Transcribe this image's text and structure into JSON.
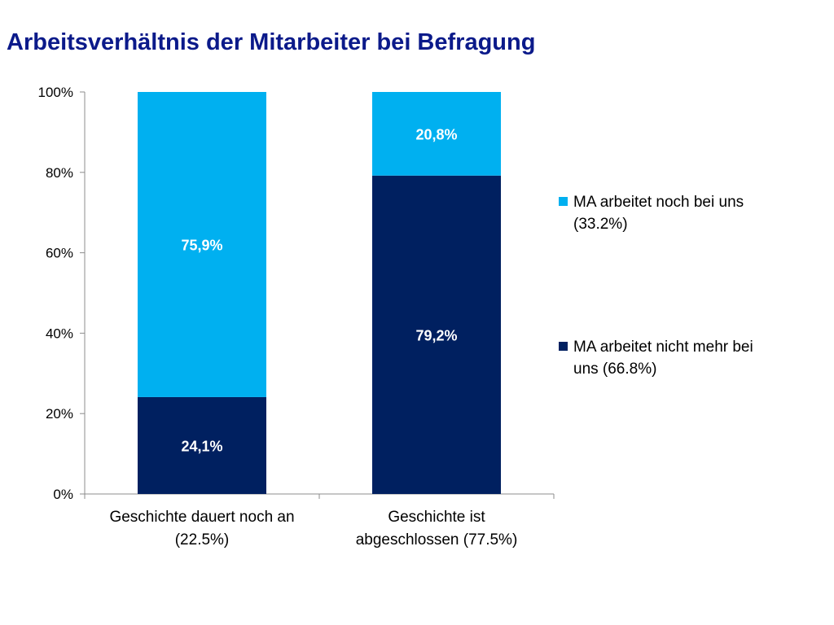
{
  "title": "Arbeitsverhältnis der Mitarbeiter bei Befragung",
  "chart_data": {
    "type": "bar",
    "stacked": "percent",
    "categories": [
      [
        "Geschichte dauert noch an",
        "(22.5%)"
      ],
      [
        "Geschichte ist",
        "abgeschlossen (77.5%)"
      ]
    ],
    "series": [
      {
        "name": [
          "MA arbeitet nicht mehr bei",
          "uns (66.8%)"
        ],
        "color": "#002060",
        "values": [
          24.1,
          79.2
        ],
        "labels": [
          "24,1%",
          "79,2%"
        ]
      },
      {
        "name": [
          "MA arbeitet noch bei uns",
          "(33.2%)"
        ],
        "color": "#00b0f0",
        "values": [
          75.9,
          20.8
        ],
        "labels": [
          "75,9%",
          "20,8%"
        ]
      }
    ],
    "yticks": [
      "0%",
      "20%",
      "40%",
      "60%",
      "80%",
      "100%"
    ],
    "ylim": [
      0,
      100
    ],
    "grid": false,
    "legend": "right"
  }
}
